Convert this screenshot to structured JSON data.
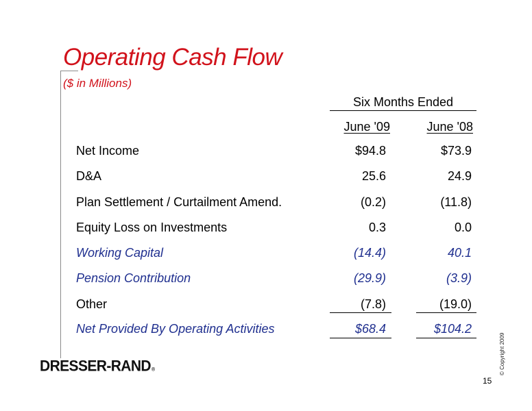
{
  "slide": {
    "title": "Operating Cash Flow",
    "subtitle": "($ in Millions)",
    "page_number": "15",
    "copyright": "© Copyright  2009",
    "logo": {
      "text": "DRESSER-RAND",
      "mark": "®"
    }
  },
  "table": {
    "period_header": "Six Months Ended",
    "columns": [
      "June '09",
      "June '08"
    ],
    "rows": [
      {
        "label": "Net Income",
        "values": [
          "$94.8",
          "$73.9"
        ],
        "style": "normal"
      },
      {
        "label": "D&A",
        "values": [
          "25.6",
          "24.9"
        ],
        "style": "normal"
      },
      {
        "label": "Plan Settlement / Curtailment Amend.",
        "values": [
          "(0.2)",
          "(11.8)"
        ],
        "style": "normal"
      },
      {
        "label": "Equity Loss on Investments",
        "values": [
          "0.3",
          "0.0"
        ],
        "style": "normal"
      },
      {
        "label": "Working Capital",
        "values": [
          "(14.4)",
          "40.1"
        ],
        "style": "highlight"
      },
      {
        "label": "Pension Contribution",
        "values": [
          "(29.9)",
          "(3.9)"
        ],
        "style": "highlight"
      },
      {
        "label": "Other",
        "values": [
          "(7.8)",
          "(19.0)"
        ],
        "style": "normal"
      },
      {
        "label": "Net Provided By Operating Activities",
        "values": [
          "$68.4",
          "$104.2"
        ],
        "style": "highlight"
      }
    ]
  },
  "colors": {
    "title": "#d1121b",
    "highlight_text": "#1f2f8f",
    "accent_line": "#8a8a8a"
  }
}
